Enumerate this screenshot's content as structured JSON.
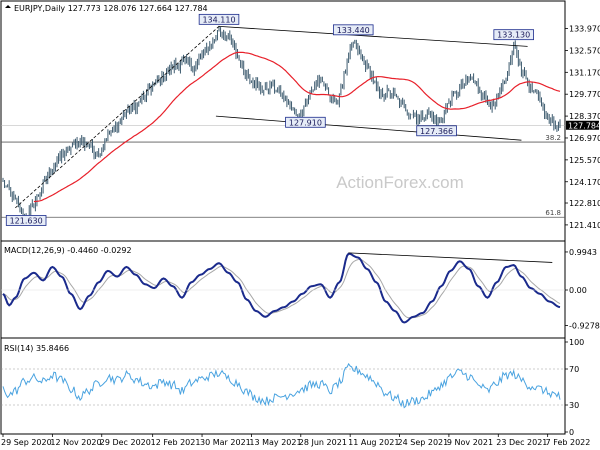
{
  "header": {
    "symbol_line": "EURJPY,Daily  127.773 128.076 127.664 127.784"
  },
  "watermark": "ActionForex.com",
  "colors": {
    "candles": "#3c5a6e",
    "ma": "#e8202a",
    "macd": "#1a2a8c",
    "signal": "#a8a8a8",
    "rsi": "#4aa3e0",
    "trend": "#000000",
    "label_border": "#1a2a8c",
    "label_fill": "#e6ecf7",
    "grid_h": "#d0d0d0"
  },
  "chart_data": [
    {
      "panel": "price",
      "type": "line",
      "series": [
        {
          "name": "EURJPY"
        }
      ],
      "ylim": [
        120.7,
        134.9
      ],
      "y_ticks": [
        "133.970",
        "132.570",
        "131.170",
        "129.770",
        "128.370",
        "126.970",
        "125.570",
        "124.170",
        "122.810",
        "121.410"
      ],
      "y_tick_values": [
        133.97,
        132.57,
        131.17,
        129.77,
        128.37,
        126.97,
        125.57,
        124.17,
        122.81,
        121.41
      ],
      "last_price_label": "127.784",
      "last_price": 127.784,
      "fib_levels": [
        {
          "label": "38.2",
          "value": 126.71
        },
        {
          "label": "61.8",
          "value": 121.9
        }
      ],
      "annotations": [
        {
          "text": "134.110",
          "value": 134.11,
          "x_index": 140
        },
        {
          "text": "133.440",
          "value": 133.44,
          "x_index": 227
        },
        {
          "text": "133.130",
          "value": 133.13,
          "x_index": 331
        },
        {
          "text": "127.910",
          "value": 127.91,
          "x_index": 196
        },
        {
          "text": "127.366",
          "value": 127.366,
          "x_index": 281
        },
        {
          "text": "121.630",
          "value": 121.63,
          "x_index": 15
        }
      ],
      "trendlines": [
        {
          "from": {
            "x_index": 140,
            "value": 134.11
          },
          "to": {
            "x_index": 340,
            "value": 132.83
          }
        },
        {
          "from": {
            "x_index": 138,
            "value": 128.37
          },
          "to": {
            "x_index": 336,
            "value": 126.83
          }
        },
        {
          "from": {
            "x_index": 8,
            "value": 122.5
          },
          "to": {
            "x_index": 140,
            "value": 134.11
          },
          "style": "dashed"
        }
      ]
    },
    {
      "panel": "macd",
      "type": "line",
      "title": "MACD(12,26,9) -0.4460 -0.0292",
      "ylim": [
        -1.15,
        1.15
      ],
      "y_ticks": [
        "0.9943",
        "0.00",
        "-0.9278"
      ],
      "y_tick_values": [
        0.9943,
        0.0,
        -0.9278
      ],
      "series": [
        {
          "name": "MACD"
        },
        {
          "name": "Signal"
        }
      ]
    },
    {
      "panel": "rsi",
      "type": "line",
      "title": "RSI(14) 35.8466",
      "ylim": [
        0,
        100
      ],
      "y_ticks": [
        "100",
        "70",
        "30",
        "0"
      ],
      "y_tick_values": [
        100,
        70,
        30,
        0
      ],
      "series": [
        {
          "name": "RSI"
        }
      ]
    }
  ],
  "x_axis": {
    "labels": [
      "29 Sep 2020",
      "12 Nov 2020",
      "29 Dec 2020",
      "12 Feb 2021",
      "30 Mar 2021",
      "13 May 2021",
      "28 Jun 2021",
      "11 Aug 2021",
      "24 Sep 2021",
      "9 Nov 2021",
      "23 Dec 2021",
      "7 Feb 2022"
    ],
    "label_indices": [
      0,
      32,
      64,
      97,
      129,
      161,
      193,
      225,
      257,
      289,
      321,
      353
    ]
  }
}
